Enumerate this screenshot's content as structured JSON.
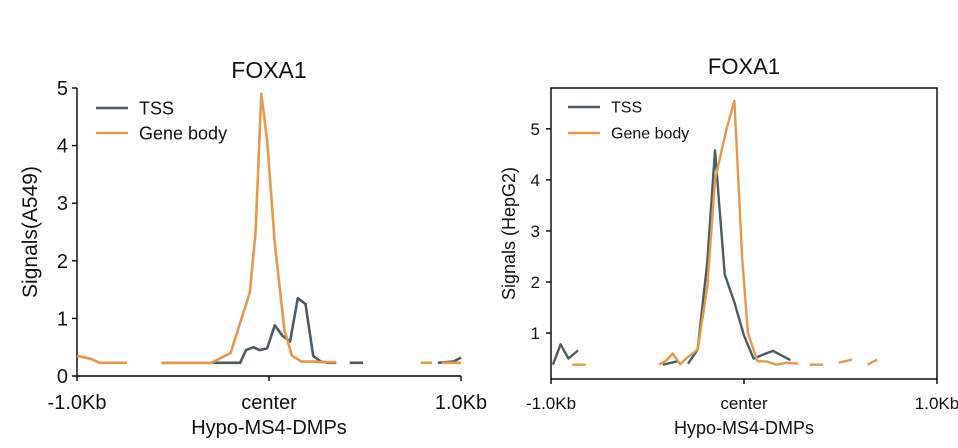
{
  "colors": {
    "tss": "#4d5b62",
    "gene_body": "#e39a4c"
  },
  "chart_data": [
    {
      "type": "line",
      "title": "FOXA1",
      "xlabel": "Hypo-MS4-DMPs",
      "ylabel": "Signals(A549)",
      "x_tick_labels": [
        "-1.0Kb",
        "center",
        "1.0Kb"
      ],
      "xlim": [
        -1000,
        1000
      ],
      "ylim": [
        0,
        5
      ],
      "yticks": [
        0,
        1,
        2,
        3,
        4,
        5
      ],
      "legend": {
        "position": "top-left",
        "entries": [
          "TSS",
          "Gene body"
        ]
      },
      "series": [
        {
          "name": "TSS",
          "color_key": "tss",
          "segments": [
            [
              [
                -560,
                0.23
              ],
              [
                -450,
                0.23
              ],
              [
                -380,
                0.23
              ],
              [
                -250,
                0.23
              ],
              [
                -150,
                0.23
              ],
              [
                -120,
                0.45
              ],
              [
                -80,
                0.5
              ],
              [
                -50,
                0.45
              ],
              [
                -10,
                0.48
              ],
              [
                30,
                0.88
              ],
              [
                70,
                0.7
              ],
              [
                110,
                0.6
              ],
              [
                150,
                1.35
              ],
              [
                190,
                1.25
              ],
              [
                230,
                0.35
              ],
              [
                270,
                0.25
              ],
              [
                310,
                0.23
              ],
              [
                350,
                0.23
              ]
            ],
            [
              [
                420,
                0.23
              ],
              [
                490,
                0.23
              ]
            ],
            [
              [
                880,
                0.23
              ],
              [
                960,
                0.25
              ],
              [
                1000,
                0.32
              ]
            ]
          ]
        },
        {
          "name": "Gene body",
          "color_key": "gene_body",
          "segments": [
            [
              [
                -1000,
                0.35
              ],
              [
                -930,
                0.3
              ],
              [
                -880,
                0.23
              ],
              [
                -800,
                0.23
              ],
              [
                -740,
                0.23
              ]
            ],
            [
              [
                -560,
                0.23
              ],
              [
                -480,
                0.23
              ],
              [
                -380,
                0.23
              ],
              [
                -300,
                0.23
              ],
              [
                -200,
                0.4
              ],
              [
                -100,
                1.45
              ],
              [
                -70,
                2.5
              ],
              [
                -40,
                4.9
              ],
              [
                -10,
                4.1
              ],
              [
                30,
                2.3
              ],
              [
                80,
                0.8
              ],
              [
                120,
                0.35
              ],
              [
                170,
                0.25
              ],
              [
                240,
                0.25
              ],
              [
                280,
                0.24
              ],
              [
                350,
                0.24
              ]
            ],
            [
              [
                790,
                0.23
              ],
              [
                850,
                0.23
              ]
            ],
            [
              [
                900,
                0.23
              ],
              [
                1000,
                0.23
              ]
            ]
          ]
        }
      ]
    },
    {
      "type": "line",
      "title": "FOXA1",
      "xlabel": "Hypo-MS4-DMPs",
      "ylabel": "Signals (HepG2)",
      "x_tick_labels": [
        "-1.0Kb",
        "center",
        "1.0Kb"
      ],
      "xlim": [
        -1000,
        1000
      ],
      "ylim": [
        0.1,
        5.8
      ],
      "yticks": [
        1,
        2,
        3,
        4,
        5
      ],
      "legend": {
        "position": "top-left",
        "entries": [
          "TSS",
          "Gene body"
        ]
      },
      "series": [
        {
          "name": "TSS",
          "color_key": "tss",
          "segments": [
            [
              [
                -990,
                0.38
              ],
              [
                -950,
                0.78
              ],
              [
                -910,
                0.5
              ],
              [
                -860,
                0.66
              ]
            ],
            [
              [
                -420,
                0.38
              ],
              [
                -340,
                0.45
              ]
            ],
            [
              [
                -290,
                0.4
              ],
              [
                -240,
                0.68
              ],
              [
                -190,
                2.4
              ],
              [
                -150,
                4.58
              ],
              [
                -100,
                2.15
              ],
              [
                -50,
                1.6
              ],
              [
                0,
                0.95
              ],
              [
                50,
                0.5
              ],
              [
                100,
                0.58
              ],
              [
                150,
                0.65
              ],
              [
                200,
                0.55
              ],
              [
                240,
                0.47
              ]
            ]
          ]
        },
        {
          "name": "Gene body",
          "color_key": "gene_body",
          "segments": [
            [
              [
                -890,
                0.38
              ],
              [
                -820,
                0.38
              ]
            ],
            [
              [
                -440,
                0.38
              ],
              [
                -400,
                0.47
              ],
              [
                -370,
                0.6
              ],
              [
                -330,
                0.39
              ],
              [
                -300,
                0.5
              ],
              [
                -240,
                0.68
              ],
              [
                -190,
                1.9
              ],
              [
                -150,
                4.0
              ],
              [
                -90,
                5.0
              ],
              [
                -50,
                5.55
              ],
              [
                -10,
                2.5
              ],
              [
                20,
                1.0
              ],
              [
                70,
                0.45
              ],
              [
                120,
                0.44
              ],
              [
                170,
                0.38
              ],
              [
                220,
                0.42
              ],
              [
                280,
                0.4
              ]
            ],
            [
              [
                340,
                0.38
              ],
              [
                410,
                0.38
              ]
            ],
            [
              [
                490,
                0.42
              ],
              [
                560,
                0.48
              ]
            ],
            [
              [
                640,
                0.38
              ],
              [
                690,
                0.48
              ]
            ]
          ]
        }
      ]
    }
  ]
}
